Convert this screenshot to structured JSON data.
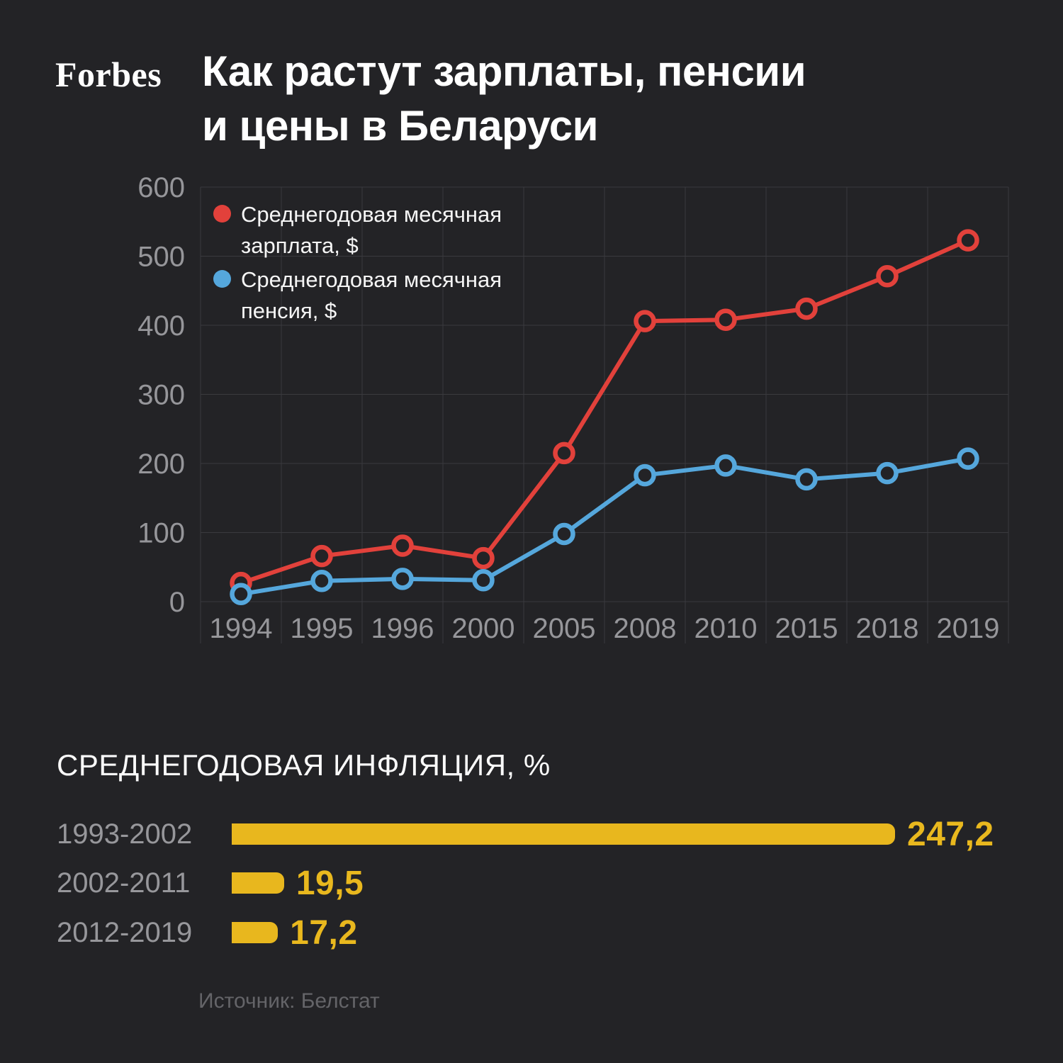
{
  "brand": {
    "logo": "Forbes"
  },
  "header": {
    "title_line1": "Как растут зарплаты, пенсии",
    "title_line2": "и цены в Беларуси"
  },
  "chart_data": [
    {
      "type": "line",
      "title": "Как растут зарплаты, пенсии и цены в Беларуси",
      "categories": [
        "1994",
        "1995",
        "1996",
        "2000",
        "2005",
        "2008",
        "2010",
        "2015",
        "2018",
        "2019"
      ],
      "series": [
        {
          "name": "Среднегодовая месячная зарплата, $",
          "color": "#e2413b",
          "values": [
            27,
            66,
            81,
            63,
            215,
            406,
            408,
            424,
            471,
            523
          ]
        },
        {
          "name": "Среднегодовая месячная пенсия, $",
          "color": "#55a7dc",
          "values": [
            11,
            30,
            33,
            31,
            98,
            183,
            197,
            177,
            186,
            207
          ]
        }
      ],
      "ylim": [
        0,
        600
      ],
      "yticks": [
        0,
        100,
        200,
        300,
        400,
        500,
        600
      ],
      "grid": true,
      "legend_position": "top-left",
      "marker": "open-circle"
    },
    {
      "type": "bar",
      "orientation": "horizontal",
      "title": "СРЕДНЕГОДОВАЯ ИНФЛЯЦИЯ, %",
      "categories": [
        "1993-2002",
        "2002-2011",
        "2012-2019"
      ],
      "values": [
        247.2,
        19.5,
        17.2
      ],
      "value_labels": [
        "247,2",
        "19,5",
        "17,2"
      ],
      "bar_color": "#e8b71e"
    }
  ],
  "source": {
    "text": "Источник: Белстат"
  },
  "colors": {
    "background": "#232326",
    "gridline": "#3a3a3e",
    "axis_text": "#96969a",
    "salary_red": "#e2413b",
    "pension_blue": "#55a7dc",
    "inflation_yellow": "#e8b71e",
    "text_white": "#ffffff"
  }
}
